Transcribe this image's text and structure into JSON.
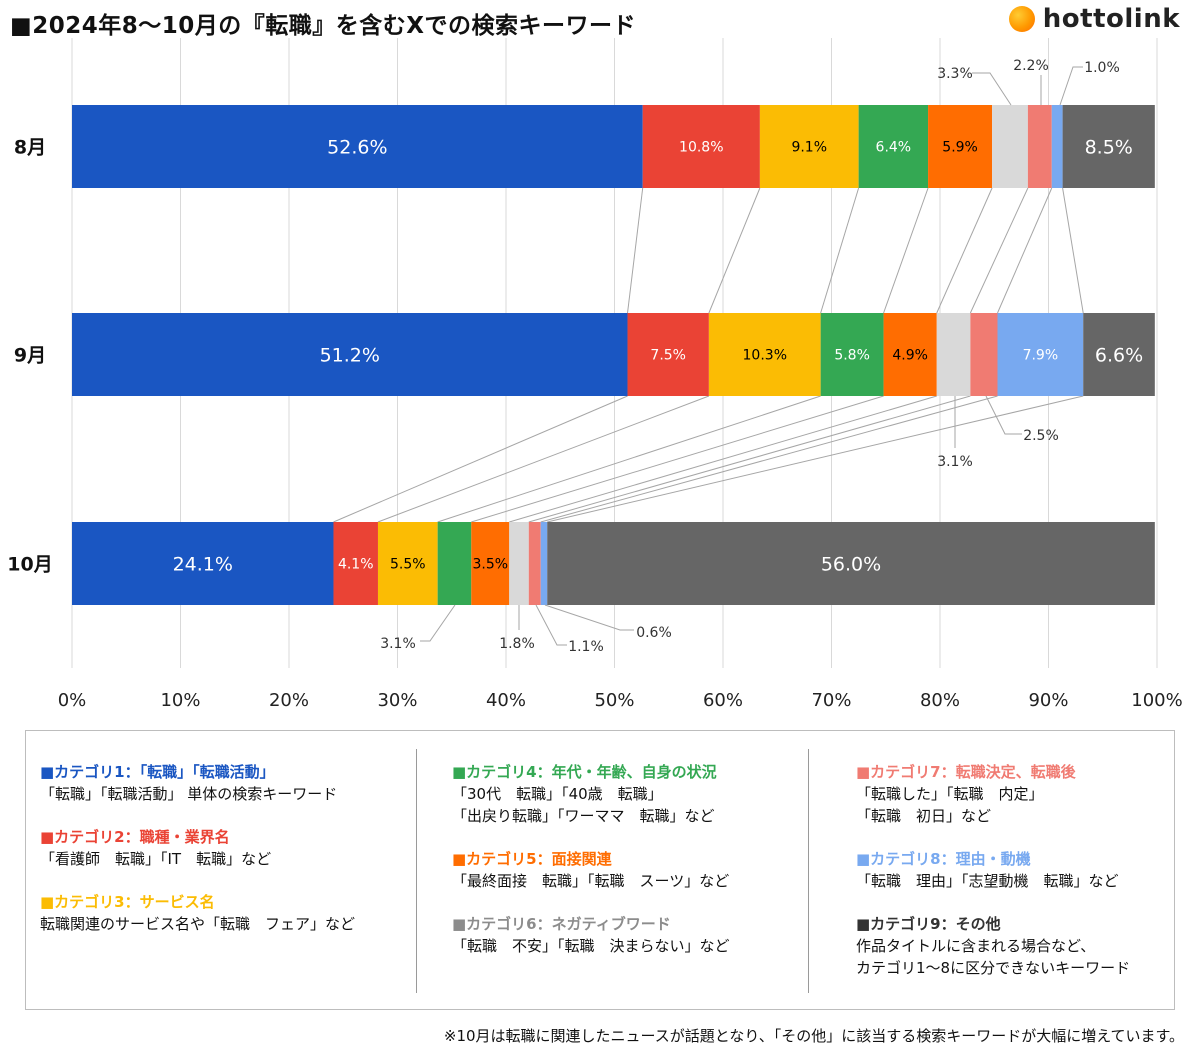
{
  "title": "■2024年8〜10月の『転職』を含むXでの検索キーワード",
  "brand": {
    "name": "hottolink",
    "logo_icon": "orange-circle-logo-icon"
  },
  "chart_data": {
    "type": "bar",
    "orientation": "horizontal",
    "stacked": "percent",
    "categories": [
      "8月",
      "9月",
      "10月"
    ],
    "x_ticks": [
      "0%",
      "10%",
      "20%",
      "30%",
      "40%",
      "50%",
      "60%",
      "70%",
      "80%",
      "90%",
      "100%"
    ],
    "xlim": [
      0,
      100
    ],
    "grid": "vertical",
    "series": [
      {
        "name": "カテゴリ1：「転職」「転職活動」",
        "color": "#1a56c2",
        "values": [
          52.6,
          51.2,
          24.1
        ],
        "labels": [
          "52.6%",
          "51.2%",
          "24.1%"
        ]
      },
      {
        "name": "カテゴリ2：職種・業界名",
        "color": "#ea4335",
        "values": [
          10.8,
          7.5,
          4.1
        ],
        "labels": [
          "10.8%",
          "7.5%",
          "4.1%"
        ]
      },
      {
        "name": "カテゴリ3：サービス名",
        "color": "#fbbc04",
        "values": [
          9.1,
          10.3,
          5.5
        ],
        "labels": [
          "9.1%",
          "10.3%",
          "5.5%"
        ]
      },
      {
        "name": "カテゴリ4：年代・年齢、自身の状況",
        "color": "#34a853",
        "values": [
          6.4,
          5.8,
          3.1
        ],
        "labels": [
          "6.4%",
          "5.8%",
          "3.1%"
        ]
      },
      {
        "name": "カテゴリ5：面接関連",
        "color": "#ff6d01",
        "values": [
          5.9,
          4.9,
          3.5
        ],
        "labels": [
          "5.9%",
          "4.9%",
          "3.5%"
        ]
      },
      {
        "name": "カテゴリ6：ネガティブワード",
        "color": "#d9d9d9",
        "values": [
          3.3,
          3.1,
          1.8
        ],
        "labels": [
          "3.3%",
          "3.1%",
          "1.8%"
        ]
      },
      {
        "name": "カテゴリ7：転職決定、転職後",
        "color": "#f07b72",
        "values": [
          2.2,
          2.5,
          1.1
        ],
        "labels": [
          "2.2%",
          "2.5%",
          "1.1%"
        ]
      },
      {
        "name": "カテゴリ8：理由・動機",
        "color": "#78a9f0",
        "values": [
          1.0,
          7.9,
          0.6
        ],
        "labels": [
          "1.0%",
          "7.9%",
          "0.6%"
        ]
      },
      {
        "name": "カテゴリ9：その他",
        "color": "#666666",
        "values": [
          8.5,
          6.6,
          56.0
        ],
        "labels": [
          "8.5%",
          "6.6%",
          "56.0%"
        ]
      }
    ]
  },
  "legend": {
    "items": [
      {
        "head": "■カテゴリ1：「転職」「転職活動」",
        "color": "#1a56c2",
        "lines": [
          "「転職」「転職活動」 単体の検索キーワード"
        ]
      },
      {
        "head": "■カテゴリ2：職種・業界名",
        "color": "#ea4335",
        "lines": [
          "「看護師　転職」「IT　転職」など"
        ]
      },
      {
        "head": "■カテゴリ3：サービス名",
        "color": "#fbbc04",
        "lines": [
          "転職関連のサービス名や「転職　フェア」など"
        ]
      },
      {
        "head": "■カテゴリ4：年代・年齢、自身の状況",
        "color": "#34a853",
        "lines": [
          "「30代　転職」「40歳　転職」",
          "「出戻り転職」「ワーママ　転職」など"
        ]
      },
      {
        "head": "■カテゴリ5：面接関連",
        "color": "#ff6d01",
        "lines": [
          "「最終面接　転職」「転職　スーツ」など"
        ]
      },
      {
        "head": "■カテゴリ6：ネガティブワード",
        "color": "#8c8c8c",
        "lines": [
          "「転職　不安」「転職　決まらない」など"
        ]
      },
      {
        "head": "■カテゴリ7：転職決定、転職後",
        "color": "#f07b72",
        "lines": [
          "「転職した」「転職　内定」",
          "「転職　初日」など"
        ]
      },
      {
        "head": "■カテゴリ8：理由・動機",
        "color": "#78a9f0",
        "lines": [
          "「転職　理由」「志望動機　転職」など"
        ]
      },
      {
        "head": "■カテゴリ9：その他",
        "color": "#333333",
        "lines": [
          "作品タイトルに含まれる場合など、",
          "カテゴリ1〜8に区分できないキーワード"
        ]
      }
    ]
  },
  "footnote": "※10月は転職に関連したニュースが話題となり、「その他」に該当する検索キーワードが大幅に増えています。"
}
